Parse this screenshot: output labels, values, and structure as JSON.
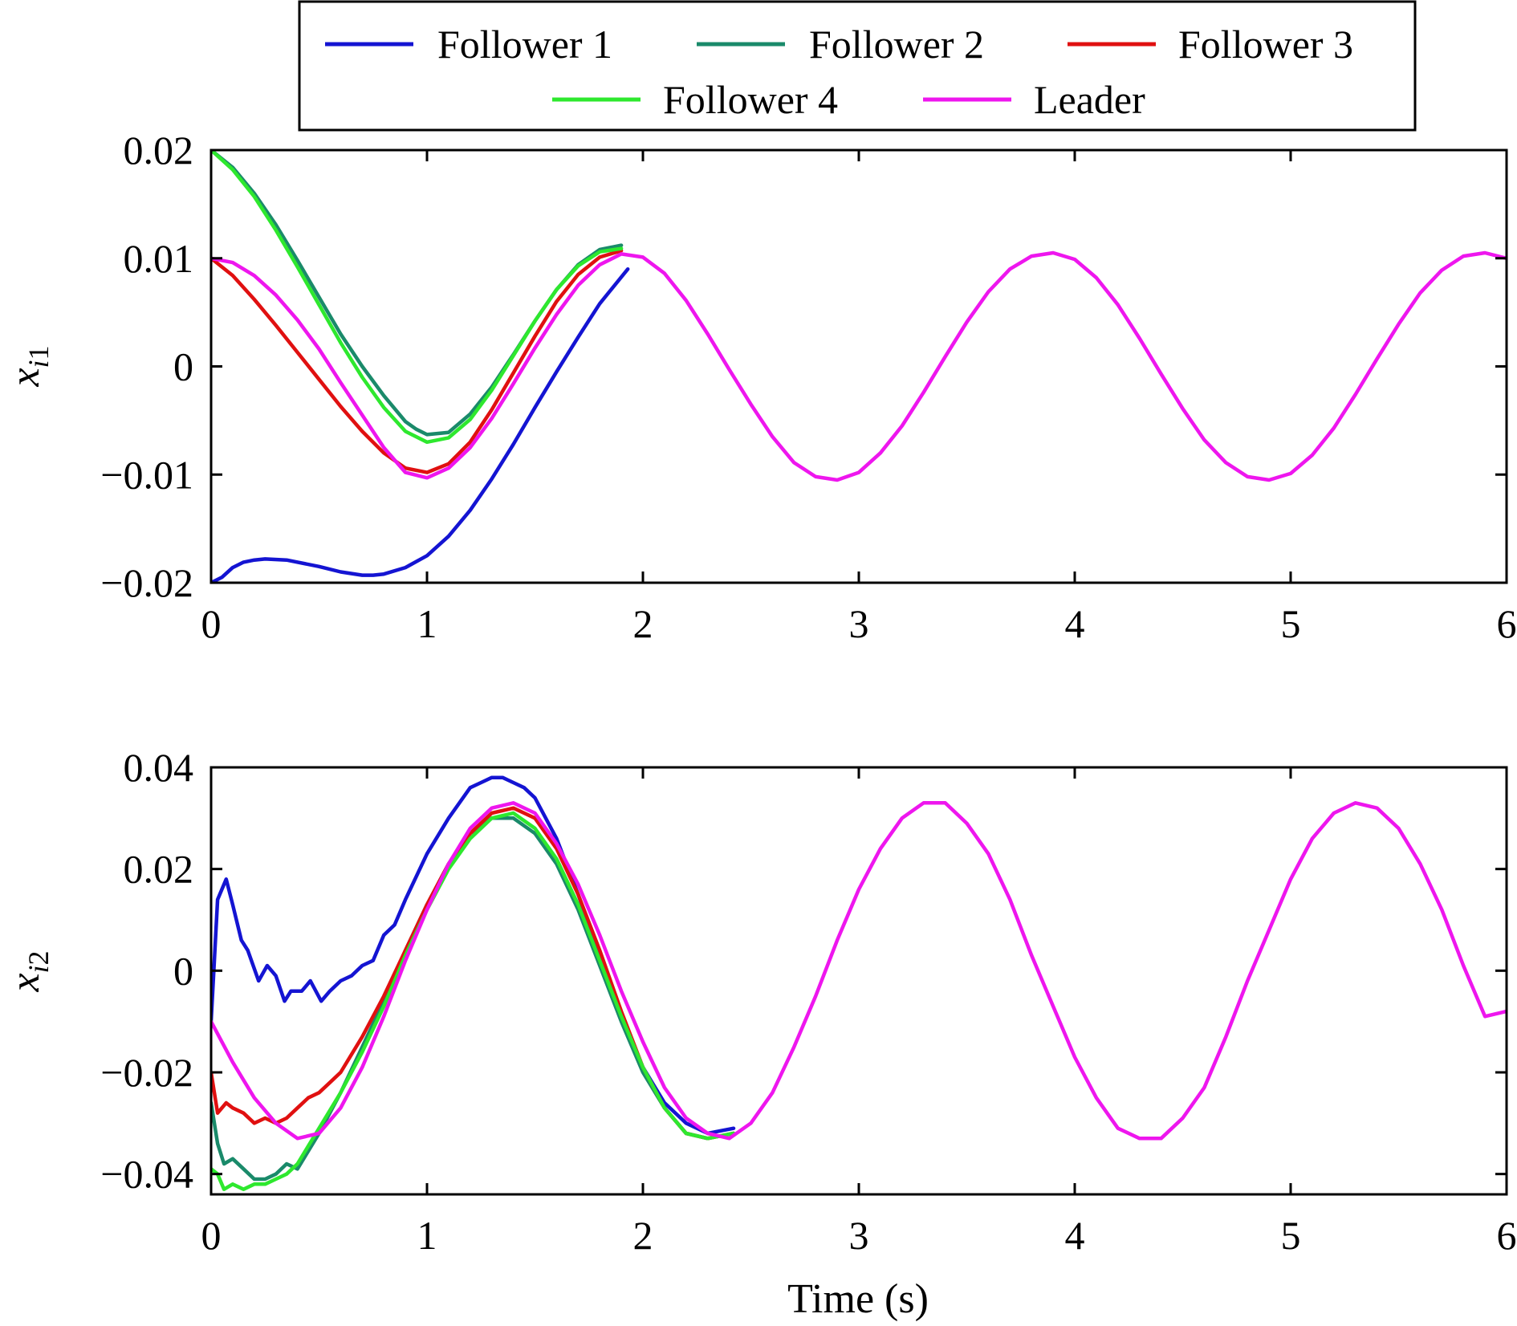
{
  "chart_data": {
    "type": "line",
    "legend": {
      "placement": "top",
      "entries": [
        {
          "label": "Follower 1",
          "color": "#1414d2"
        },
        {
          "label": "Follower 2",
          "color": "#1a8a6a"
        },
        {
          "label": "Follower 3",
          "color": "#e01010"
        },
        {
          "label": "Follower 4",
          "color": "#2ee82e"
        },
        {
          "label": "Leader",
          "color": "#ee16ee"
        }
      ]
    },
    "xlabel": "Time (s)",
    "panels": [
      {
        "ylabel": {
          "base": "x",
          "subscript_italic": "i",
          "subscript_tail": "1"
        },
        "xlim": [
          0,
          6
        ],
        "ylim": [
          -0.02,
          0.02
        ],
        "xticks": [
          "0",
          "1",
          "2",
          "3",
          "4",
          "5",
          "6"
        ],
        "yticks": [
          "0.02",
          "0.01",
          "0",
          "−0.01",
          "−0.02"
        ],
        "series": [
          {
            "name": "Follower 1",
            "color": "#1414d2",
            "x": [
              0,
              0.05,
              0.1,
              0.15,
              0.2,
              0.25,
              0.35,
              0.5,
              0.6,
              0.7,
              0.75,
              0.8,
              0.9,
              1.0,
              1.1,
              1.2,
              1.3,
              1.4,
              1.5,
              1.6,
              1.7,
              1.8,
              1.93
            ],
            "y": [
              -0.02,
              -0.0195,
              -0.0186,
              -0.0181,
              -0.0179,
              -0.0178,
              -0.0179,
              -0.0185,
              -0.019,
              -0.0193,
              -0.0193,
              -0.0192,
              -0.0186,
              -0.0175,
              -0.0157,
              -0.0133,
              -0.0104,
              -0.0072,
              -0.0038,
              -0.0005,
              0.0027,
              0.0058,
              0.009
            ]
          },
          {
            "name": "Follower 2",
            "color": "#1a8a6a",
            "x": [
              0,
              0.1,
              0.2,
              0.3,
              0.4,
              0.5,
              0.6,
              0.7,
              0.8,
              0.9,
              0.95,
              1.0,
              1.1,
              1.2,
              1.3,
              1.4,
              1.5,
              1.6,
              1.7,
              1.8,
              1.9
            ],
            "y": [
              0.02,
              0.0184,
              0.016,
              0.0131,
              0.0098,
              0.0064,
              0.003,
              0.0,
              -0.0027,
              -0.0051,
              -0.0058,
              -0.0063,
              -0.0061,
              -0.0044,
              -0.0019,
              0.0011,
              0.0042,
              0.0071,
              0.0094,
              0.0108,
              0.0112
            ]
          },
          {
            "name": "Follower 3",
            "color": "#e01010",
            "x": [
              0,
              0.1,
              0.2,
              0.3,
              0.4,
              0.5,
              0.6,
              0.7,
              0.8,
              0.9,
              1.0,
              1.1,
              1.2,
              1.3,
              1.4,
              1.5,
              1.6,
              1.7,
              1.8,
              1.9
            ],
            "y": [
              0.01,
              0.0084,
              0.0062,
              0.0038,
              0.0013,
              -0.0012,
              -0.0037,
              -0.006,
              -0.008,
              -0.0094,
              -0.0098,
              -0.009,
              -0.007,
              -0.004,
              -0.0006,
              0.0028,
              0.006,
              0.0085,
              0.0101,
              0.0107
            ]
          },
          {
            "name": "Follower 4",
            "color": "#2ee82e",
            "x": [
              0,
              0.1,
              0.2,
              0.3,
              0.4,
              0.5,
              0.6,
              0.7,
              0.8,
              0.9,
              1.0,
              1.1,
              1.2,
              1.3,
              1.4,
              1.5,
              1.6,
              1.7,
              1.8,
              1.9
            ],
            "y": [
              0.02,
              0.0182,
              0.0157,
              0.0126,
              0.0092,
              0.0057,
              0.0022,
              -0.001,
              -0.0038,
              -0.006,
              -0.007,
              -0.0066,
              -0.0049,
              -0.0022,
              0.001,
              0.0042,
              0.0071,
              0.0093,
              0.0106,
              0.0109
            ]
          },
          {
            "name": "Leader",
            "color": "#ee16ee",
            "x": [
              0,
              0.1,
              0.2,
              0.3,
              0.4,
              0.5,
              0.6,
              0.7,
              0.8,
              0.9,
              1.0,
              1.1,
              1.2,
              1.3,
              1.4,
              1.5,
              1.6,
              1.7,
              1.8,
              1.9,
              2.0,
              2.1,
              2.2,
              2.3,
              2.4,
              2.5,
              2.6,
              2.7,
              2.8,
              2.9,
              3.0,
              3.1,
              3.2,
              3.3,
              3.4,
              3.5,
              3.6,
              3.7,
              3.8,
              3.9,
              4.0,
              4.1,
              4.2,
              4.3,
              4.4,
              4.5,
              4.6,
              4.7,
              4.8,
              4.9,
              5.0,
              5.1,
              5.2,
              5.3,
              5.4,
              5.5,
              5.6,
              5.7,
              5.8,
              5.9,
              6.0
            ],
            "y": [
              0.01,
              0.0096,
              0.0084,
              0.0066,
              0.0043,
              0.0016,
              -0.0015,
              -0.0045,
              -0.0075,
              -0.0098,
              -0.0103,
              -0.0094,
              -0.0075,
              -0.0048,
              -0.0016,
              0.0017,
              0.0048,
              0.0075,
              0.0094,
              0.0104,
              0.0101,
              0.0086,
              0.0061,
              0.003,
              -0.0003,
              -0.0035,
              -0.0065,
              -0.0089,
              -0.0102,
              -0.0105,
              -0.0098,
              -0.008,
              -0.0055,
              -0.0024,
              0.0009,
              0.0041,
              0.0069,
              0.009,
              0.0102,
              0.0105,
              0.0099,
              0.0082,
              0.0057,
              0.0026,
              -0.0007,
              -0.0039,
              -0.0068,
              -0.0089,
              -0.0102,
              -0.0105,
              -0.0099,
              -0.0082,
              -0.0057,
              -0.0026,
              0.0007,
              0.0039,
              0.0068,
              0.0089,
              0.0102,
              0.0105,
              0.01
            ]
          }
        ]
      },
      {
        "ylabel": {
          "base": "x",
          "subscript_italic": "i",
          "subscript_tail": "2"
        },
        "xlim": [
          0,
          6
        ],
        "ylim": [
          -0.044,
          0.04
        ],
        "xticks": [
          "0",
          "1",
          "2",
          "3",
          "4",
          "5",
          "6"
        ],
        "yticks": [
          "0.04",
          "0.02",
          "0",
          "−0.02",
          "−0.04"
        ],
        "series": [
          {
            "name": "Follower 1",
            "color": "#1414d2",
            "x": [
              0,
              0.03,
              0.07,
              0.1,
              0.14,
              0.17,
              0.22,
              0.26,
              0.3,
              0.34,
              0.37,
              0.42,
              0.46,
              0.51,
              0.55,
              0.6,
              0.65,
              0.7,
              0.75,
              0.8,
              0.85,
              0.9,
              1.0,
              1.1,
              1.2,
              1.25,
              1.3,
              1.35,
              1.4,
              1.45,
              1.5,
              1.6,
              1.7,
              1.8,
              1.9,
              2.0,
              2.1,
              2.2,
              2.3,
              2.42
            ],
            "y": [
              -0.01,
              0.014,
              0.018,
              0.013,
              0.006,
              0.004,
              -0.002,
              0.001,
              -0.001,
              -0.006,
              -0.004,
              -0.004,
              -0.002,
              -0.006,
              -0.004,
              -0.002,
              -0.001,
              0.001,
              0.002,
              0.007,
              0.009,
              0.014,
              0.023,
              0.03,
              0.036,
              0.037,
              0.038,
              0.038,
              0.037,
              0.036,
              0.034,
              0.026,
              0.015,
              0.003,
              -0.009,
              -0.019,
              -0.026,
              -0.03,
              -0.032,
              -0.031
            ]
          },
          {
            "name": "Follower 2",
            "color": "#1a8a6a",
            "x": [
              0,
              0.03,
              0.06,
              0.1,
              0.15,
              0.2,
              0.25,
              0.3,
              0.35,
              0.4,
              0.5,
              0.6,
              0.7,
              0.8,
              0.9,
              1.0,
              1.1,
              1.2,
              1.3,
              1.4,
              1.5,
              1.6,
              1.7,
              1.8,
              1.9,
              2.0,
              2.1,
              2.2,
              2.3,
              2.42
            ],
            "y": [
              -0.026,
              -0.034,
              -0.038,
              -0.037,
              -0.039,
              -0.041,
              -0.041,
              -0.04,
              -0.038,
              -0.039,
              -0.032,
              -0.024,
              -0.015,
              -0.006,
              0.004,
              0.013,
              0.021,
              0.027,
              0.03,
              0.03,
              0.027,
              0.021,
              0.012,
              0.001,
              -0.01,
              -0.02,
              -0.027,
              -0.032,
              -0.033,
              -0.032
            ]
          },
          {
            "name": "Follower 3",
            "color": "#e01010",
            "x": [
              0,
              0.03,
              0.07,
              0.1,
              0.15,
              0.2,
              0.25,
              0.3,
              0.35,
              0.4,
              0.45,
              0.5,
              0.55,
              0.6,
              0.7,
              0.8,
              0.9,
              1.0,
              1.1,
              1.2,
              1.3,
              1.4,
              1.5,
              1.6,
              1.7,
              1.8,
              1.9,
              2.0,
              2.1,
              2.2,
              2.3,
              2.42
            ],
            "y": [
              -0.02,
              -0.028,
              -0.026,
              -0.027,
              -0.028,
              -0.03,
              -0.029,
              -0.03,
              -0.029,
              -0.027,
              -0.025,
              -0.024,
              -0.022,
              -0.02,
              -0.013,
              -0.005,
              0.004,
              0.013,
              0.021,
              0.027,
              0.031,
              0.032,
              0.03,
              0.024,
              0.015,
              0.004,
              -0.008,
              -0.019,
              -0.027,
              -0.032,
              -0.033,
              -0.032
            ]
          },
          {
            "name": "Follower 4",
            "color": "#2ee82e",
            "x": [
              0,
              0.03,
              0.06,
              0.1,
              0.15,
              0.2,
              0.25,
              0.3,
              0.35,
              0.4,
              0.5,
              0.6,
              0.7,
              0.8,
              0.9,
              1.0,
              1.1,
              1.2,
              1.3,
              1.4,
              1.5,
              1.6,
              1.7,
              1.8,
              1.9,
              2.0,
              2.1,
              2.2,
              2.3,
              2.42
            ],
            "y": [
              -0.039,
              -0.04,
              -0.043,
              -0.042,
              -0.043,
              -0.042,
              -0.042,
              -0.041,
              -0.04,
              -0.038,
              -0.031,
              -0.024,
              -0.016,
              -0.007,
              0.003,
              0.012,
              0.02,
              0.026,
              0.03,
              0.031,
              0.028,
              0.022,
              0.013,
              0.002,
              -0.009,
              -0.019,
              -0.027,
              -0.032,
              -0.033,
              -0.032
            ]
          },
          {
            "name": "Leader",
            "color": "#ee16ee",
            "x": [
              0,
              0.1,
              0.2,
              0.3,
              0.4,
              0.5,
              0.6,
              0.7,
              0.8,
              0.9,
              1.0,
              1.1,
              1.2,
              1.3,
              1.4,
              1.5,
              1.6,
              1.7,
              1.8,
              1.9,
              2.0,
              2.1,
              2.2,
              2.3,
              2.4,
              2.5,
              2.6,
              2.7,
              2.8,
              2.9,
              3.0,
              3.1,
              3.2,
              3.3,
              3.4,
              3.5,
              3.6,
              3.7,
              3.8,
              3.9,
              4.0,
              4.1,
              4.2,
              4.3,
              4.4,
              4.5,
              4.6,
              4.7,
              4.8,
              4.9,
              5.0,
              5.1,
              5.2,
              5.3,
              5.4,
              5.5,
              5.6,
              5.7,
              5.8,
              5.9,
              6.0
            ],
            "y": [
              -0.01,
              -0.018,
              -0.025,
              -0.03,
              -0.033,
              -0.032,
              -0.027,
              -0.019,
              -0.009,
              0.002,
              0.012,
              0.021,
              0.028,
              0.032,
              0.033,
              0.031,
              0.025,
              0.017,
              0.007,
              -0.004,
              -0.014,
              -0.023,
              -0.029,
              -0.032,
              -0.033,
              -0.03,
              -0.024,
              -0.015,
              -0.005,
              0.006,
              0.016,
              0.024,
              0.03,
              0.033,
              0.033,
              0.029,
              0.023,
              0.014,
              0.003,
              -0.007,
              -0.017,
              -0.025,
              -0.031,
              -0.033,
              -0.033,
              -0.029,
              -0.023,
              -0.013,
              -0.002,
              0.008,
              0.018,
              0.026,
              0.031,
              0.033,
              0.032,
              0.028,
              0.021,
              0.012,
              0.001,
              -0.009,
              -0.008
            ]
          }
        ]
      }
    ]
  }
}
